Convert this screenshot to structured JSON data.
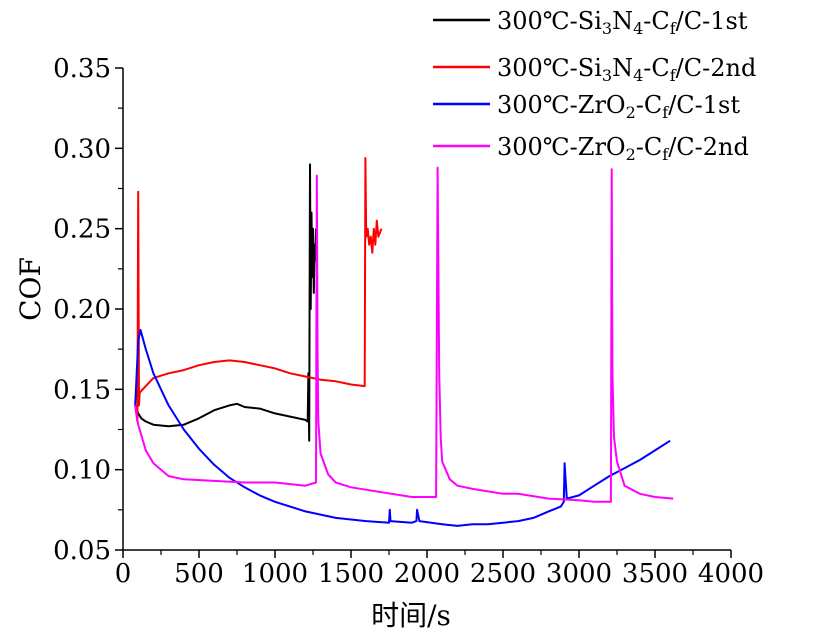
{
  "chart_data": {
    "type": "line",
    "xlabel": "时间/s",
    "ylabel": "COF",
    "xlim": [
      0,
      4000
    ],
    "ylim": [
      0.05,
      0.35
    ],
    "xticks": [
      "0",
      "500",
      "1000",
      "1500",
      "2000",
      "2500",
      "3000",
      "3500",
      "4000"
    ],
    "yticks": [
      "0.05",
      "0.10",
      "0.15",
      "0.20",
      "0.25",
      "0.30",
      "0.35"
    ],
    "grid": false,
    "legend_position": "top-right",
    "series": [
      {
        "name": "300℃-Si3N4-Cf/C-1st",
        "label_parts": [
          "300℃-Si",
          "3",
          "N",
          "4",
          "-C",
          "f",
          "/C-1st"
        ],
        "color": "#000000",
        "x": [
          80,
          100,
          120,
          150,
          200,
          300,
          400,
          500,
          600,
          700,
          750,
          800,
          900,
          1000,
          1100,
          1200,
          1215,
          1220,
          1225,
          1230,
          1235,
          1240,
          1245,
          1250,
          1255,
          1260,
          1265,
          1270
        ],
        "y": [
          0.14,
          0.135,
          0.132,
          0.13,
          0.128,
          0.127,
          0.128,
          0.132,
          0.137,
          0.14,
          0.141,
          0.139,
          0.138,
          0.135,
          0.133,
          0.131,
          0.13,
          0.16,
          0.118,
          0.29,
          0.2,
          0.26,
          0.22,
          0.25,
          0.21,
          0.24,
          0.23,
          0.25
        ]
      },
      {
        "name": "300℃-Si3N4-Cf/C-2nd",
        "label_parts": [
          "300℃-Si",
          "3",
          "N",
          "4",
          "-C",
          "f",
          "/C-2nd"
        ],
        "color": "#ff0000",
        "x": [
          80,
          95,
          100,
          105,
          110,
          150,
          200,
          300,
          400,
          500,
          600,
          700,
          800,
          900,
          1000,
          1100,
          1200,
          1300,
          1400,
          1500,
          1590,
          1595,
          1600,
          1610,
          1620,
          1630,
          1640,
          1650,
          1660,
          1670,
          1680,
          1700
        ],
        "y": [
          0.14,
          0.13,
          0.273,
          0.14,
          0.148,
          0.152,
          0.157,
          0.16,
          0.162,
          0.165,
          0.167,
          0.168,
          0.167,
          0.165,
          0.163,
          0.16,
          0.158,
          0.156,
          0.155,
          0.153,
          0.152,
          0.294,
          0.245,
          0.25,
          0.24,
          0.245,
          0.235,
          0.25,
          0.24,
          0.255,
          0.245,
          0.25
        ]
      },
      {
        "name": "300℃-ZrO2-Cf/C-1st",
        "label_parts": [
          "300℃-ZrO",
          "2",
          "-C",
          "f",
          "/C-1st"
        ],
        "color": "#0000ff",
        "x": [
          80,
          100,
          115,
          150,
          200,
          300,
          400,
          500,
          600,
          700,
          800,
          900,
          1000,
          1200,
          1400,
          1600,
          1750,
          1755,
          1760,
          1900,
          1930,
          1935,
          1950,
          2100,
          2200,
          2300,
          2400,
          2500,
          2600,
          2700,
          2800,
          2880,
          2900,
          2905,
          2920,
          3000,
          3100,
          3200,
          3300,
          3400,
          3500,
          3600
        ],
        "y": [
          0.14,
          0.18,
          0.187,
          0.175,
          0.16,
          0.14,
          0.125,
          0.113,
          0.103,
          0.095,
          0.089,
          0.084,
          0.08,
          0.074,
          0.07,
          0.068,
          0.067,
          0.075,
          0.068,
          0.067,
          0.068,
          0.075,
          0.068,
          0.066,
          0.065,
          0.066,
          0.066,
          0.067,
          0.068,
          0.07,
          0.074,
          0.077,
          0.08,
          0.104,
          0.082,
          0.084,
          0.09,
          0.096,
          0.101,
          0.106,
          0.112,
          0.118
        ]
      },
      {
        "name": "300℃-ZrO2-Cf/C-2nd",
        "label_parts": [
          "300℃-ZrO",
          "2",
          "-C",
          "f",
          "/C-2nd"
        ],
        "color": "#ff00ff",
        "x": [
          80,
          100,
          150,
          200,
          300,
          400,
          600,
          800,
          1000,
          1200,
          1270,
          1275,
          1280,
          1285,
          1300,
          1350,
          1400,
          1500,
          1700,
          1900,
          2060,
          2070,
          2080,
          2090,
          2100,
          2150,
          2200,
          2300,
          2500,
          2600,
          2800,
          3000,
          3100,
          3200,
          3210,
          3215,
          3220,
          3230,
          3250,
          3300,
          3400,
          3500,
          3620
        ],
        "y": [
          0.14,
          0.128,
          0.112,
          0.104,
          0.096,
          0.094,
          0.093,
          0.092,
          0.092,
          0.09,
          0.092,
          0.283,
          0.17,
          0.13,
          0.11,
          0.097,
          0.092,
          0.089,
          0.086,
          0.083,
          0.083,
          0.288,
          0.16,
          0.12,
          0.105,
          0.094,
          0.09,
          0.088,
          0.085,
          0.085,
          0.082,
          0.081,
          0.08,
          0.08,
          0.08,
          0.287,
          0.16,
          0.12,
          0.105,
          0.09,
          0.085,
          0.083,
          0.082
        ]
      }
    ]
  }
}
